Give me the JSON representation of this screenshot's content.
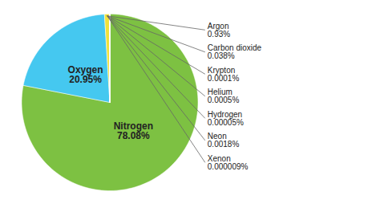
{
  "chart_data": {
    "type": "pie",
    "categories": [
      "Nitrogen",
      "Oxygen",
      "Argon",
      "Carbon dioxide",
      "Krypton",
      "Helium",
      "Hydrogen",
      "Neon",
      "Xenon"
    ],
    "values": [
      78.08,
      20.95,
      0.93,
      0.038,
      0.0001,
      0.0005,
      5e-05,
      0.0018,
      9e-06
    ],
    "value_labels": [
      "78.08%",
      "20.95%",
      "0.93%",
      "0.038%",
      "0.0001%",
      "0.0005%",
      "0.00005%",
      "0.0018%",
      "0.000009%"
    ],
    "colors": [
      "#7dc142",
      "#45c8f0",
      "#f0e13a",
      "#7dc142",
      "#7dc142",
      "#7dc142",
      "#7dc142",
      "#7dc142",
      "#7dc142"
    ],
    "data_labels": true,
    "legend": false
  }
}
